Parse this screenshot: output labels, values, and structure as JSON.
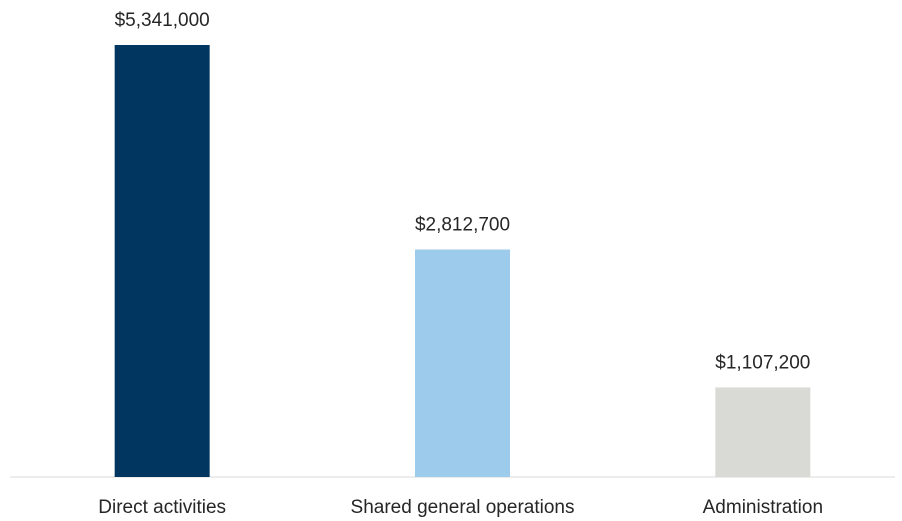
{
  "chart_data": {
    "type": "bar",
    "categories": [
      "Direct activities",
      "Shared general operations",
      "Administration"
    ],
    "values": [
      5341000,
      2812700,
      1107200
    ],
    "value_labels": [
      "$5,341,000",
      "$2,812,700",
      "$1,107,200"
    ],
    "colors": [
      "#003660",
      "#9dcbeb",
      "#d9d9d6"
    ]
  }
}
